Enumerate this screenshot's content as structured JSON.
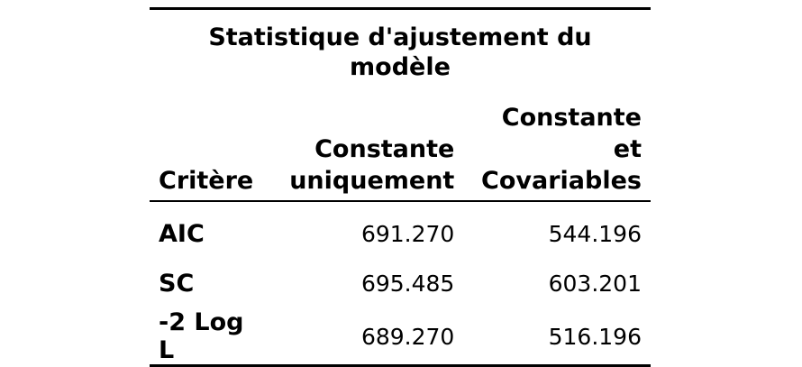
{
  "table": {
    "title": "Statistique d'ajustement du modèle",
    "headers": [
      "Critère",
      "Constante uniquement",
      "Constante et Covariables"
    ],
    "rows": [
      {
        "label": "AIC",
        "values": [
          "691.270",
          "544.196"
        ]
      },
      {
        "label": "SC",
        "values": [
          "695.485",
          "603.201"
        ]
      },
      {
        "label": "-2 Log L",
        "values": [
          "689.270",
          "516.196"
        ]
      }
    ]
  }
}
